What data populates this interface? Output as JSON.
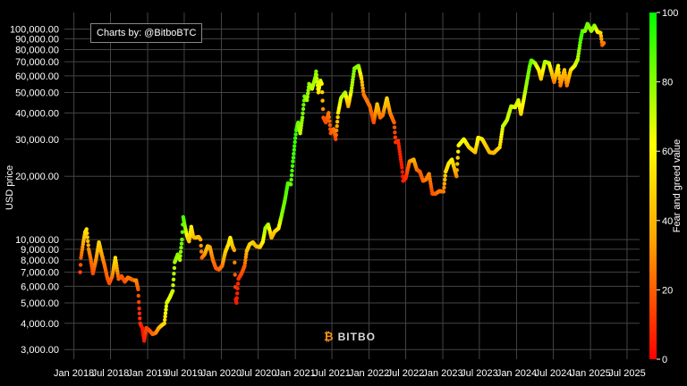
{
  "credit": "Charts by: @BitboBTC",
  "watermark": "BITBO",
  "chart_data": {
    "type": "scatter",
    "title": "",
    "ylabel": "USD price",
    "colorbar_label": "Fear and greed value",
    "y_scale": "log",
    "ylim": [
      2700,
      120000
    ],
    "x_range": [
      "2017-11-15",
      "2025-09-01"
    ],
    "x_ticks": [
      "Jan 2018",
      "Jul 2018",
      "Jan 2019",
      "Jul 2019",
      "Jan 2020",
      "Jul 2020",
      "Jan 2021",
      "Jul 2021",
      "Jan 2022",
      "Jul 2022",
      "Jan 2023",
      "Jul 2023",
      "Jan 2024",
      "Jul 2024",
      "Jan 2025",
      "Jul 2025"
    ],
    "y_ticks": [
      3000,
      4000,
      5000,
      6000,
      7000,
      8000,
      9000,
      10000,
      20000,
      30000,
      40000,
      50000,
      60000,
      70000,
      80000,
      90000,
      100000
    ],
    "y_tick_labels": [
      "3,000.00",
      "4,000.00",
      "5,000.00",
      "6,000.00",
      "7,000.00",
      "8,000.00",
      "9,000.00",
      "10,000.00",
      "20,000.00",
      "30,000.00",
      "40,000.00",
      "50,000.00",
      "60,000.00",
      "70,000.00",
      "80,000.00",
      "90,000.00",
      "100,000.00"
    ],
    "colorbar_range": [
      0,
      100
    ],
    "colorbar_ticks": [
      0,
      20,
      40,
      60,
      80,
      100
    ],
    "colorscale": [
      "#ff0000",
      "#ffa500",
      "#ffff00",
      "#00ff00"
    ],
    "grid": true,
    "series": [
      {
        "points": [
          [
            "2018-02-01",
            7000,
            15
          ],
          [
            "2018-02-05",
            8200,
            20
          ],
          [
            "2018-02-15",
            9500,
            35
          ],
          [
            "2018-02-25",
            10800,
            50
          ],
          [
            "2018-03-05",
            11200,
            55
          ],
          [
            "2018-03-15",
            9000,
            30
          ],
          [
            "2018-03-25",
            8100,
            25
          ],
          [
            "2018-04-05",
            6900,
            15
          ],
          [
            "2018-04-20",
            8000,
            30
          ],
          [
            "2018-05-05",
            9700,
            50
          ],
          [
            "2018-05-20",
            8400,
            35
          ],
          [
            "2018-06-01",
            7600,
            25
          ],
          [
            "2018-06-15",
            6600,
            20
          ],
          [
            "2018-06-25",
            6200,
            15
          ],
          [
            "2018-07-10",
            6700,
            25
          ],
          [
            "2018-07-25",
            8200,
            55
          ],
          [
            "2018-08-10",
            6500,
            20
          ],
          [
            "2018-08-25",
            6700,
            20
          ],
          [
            "2018-09-10",
            6300,
            15
          ],
          [
            "2018-09-25",
            6600,
            25
          ],
          [
            "2018-10-10",
            6500,
            25
          ],
          [
            "2018-10-25",
            6400,
            20
          ],
          [
            "2018-11-05",
            6400,
            30
          ],
          [
            "2018-11-15",
            5800,
            20
          ],
          [
            "2018-11-20",
            4700,
            10
          ],
          [
            "2018-11-25",
            4000,
            10
          ],
          [
            "2018-12-05",
            3800,
            5
          ],
          [
            "2018-12-15",
            3300,
            5
          ],
          [
            "2018-12-25",
            3800,
            15
          ],
          [
            "2019-01-10",
            3700,
            15
          ],
          [
            "2019-01-25",
            3550,
            20
          ],
          [
            "2019-02-10",
            3600,
            25
          ],
          [
            "2019-02-25",
            3800,
            35
          ],
          [
            "2019-03-10",
            3900,
            45
          ],
          [
            "2019-03-25",
            4000,
            50
          ],
          [
            "2019-04-05",
            5000,
            70
          ],
          [
            "2019-04-20",
            5300,
            65
          ],
          [
            "2019-05-05",
            5700,
            70
          ],
          [
            "2019-05-15",
            7800,
            75
          ],
          [
            "2019-05-30",
            8500,
            80
          ],
          [
            "2019-06-10",
            8000,
            75
          ],
          [
            "2019-06-20",
            10000,
            85
          ],
          [
            "2019-06-26",
            12800,
            90
          ],
          [
            "2019-07-05",
            11500,
            80
          ],
          [
            "2019-07-15",
            10400,
            60
          ],
          [
            "2019-07-25",
            9800,
            45
          ],
          [
            "2019-08-05",
            11500,
            60
          ],
          [
            "2019-08-15",
            10300,
            45
          ],
          [
            "2019-08-25",
            10200,
            40
          ],
          [
            "2019-09-10",
            10300,
            45
          ],
          [
            "2019-09-20",
            10000,
            40
          ],
          [
            "2019-09-26",
            8200,
            20
          ],
          [
            "2019-10-10",
            8500,
            30
          ],
          [
            "2019-10-25",
            9300,
            45
          ],
          [
            "2019-11-05",
            9200,
            40
          ],
          [
            "2019-11-20",
            8000,
            25
          ],
          [
            "2019-12-05",
            7300,
            20
          ],
          [
            "2019-12-20",
            7200,
            20
          ],
          [
            "2020-01-05",
            7500,
            25
          ],
          [
            "2020-01-20",
            8700,
            45
          ],
          [
            "2020-02-05",
            9500,
            55
          ],
          [
            "2020-02-14",
            10200,
            60
          ],
          [
            "2020-02-25",
            9300,
            45
          ],
          [
            "2020-03-05",
            8900,
            35
          ],
          [
            "2020-03-12",
            5200,
            5
          ],
          [
            "2020-03-16",
            5000,
            5
          ],
          [
            "2020-03-25",
            6500,
            10
          ],
          [
            "2020-04-10",
            6900,
            15
          ],
          [
            "2020-04-25",
            7500,
            20
          ],
          [
            "2020-05-05",
            8800,
            40
          ],
          [
            "2020-05-20",
            9500,
            50
          ],
          [
            "2020-06-05",
            9700,
            50
          ],
          [
            "2020-06-20",
            9300,
            40
          ],
          [
            "2020-07-10",
            9200,
            45
          ],
          [
            "2020-07-25",
            9800,
            60
          ],
          [
            "2020-08-05",
            11300,
            75
          ],
          [
            "2020-08-20",
            11800,
            75
          ],
          [
            "2020-09-05",
            10200,
            40
          ],
          [
            "2020-09-20",
            10900,
            45
          ],
          [
            "2020-10-10",
            11300,
            55
          ],
          [
            "2020-10-25",
            13000,
            80
          ],
          [
            "2020-11-10",
            15300,
            85
          ],
          [
            "2020-11-25",
            18500,
            90
          ],
          [
            "2020-12-10",
            18300,
            85
          ],
          [
            "2020-12-20",
            23500,
            90
          ],
          [
            "2021-01-05",
            33000,
            92
          ],
          [
            "2021-01-15",
            36000,
            85
          ],
          [
            "2021-01-25",
            32000,
            70
          ],
          [
            "2021-02-05",
            38000,
            80
          ],
          [
            "2021-02-15",
            48000,
            88
          ],
          [
            "2021-02-28",
            46000,
            75
          ],
          [
            "2021-03-10",
            55000,
            80
          ],
          [
            "2021-03-25",
            52000,
            70
          ],
          [
            "2021-04-10",
            59000,
            78
          ],
          [
            "2021-04-14",
            63000,
            80
          ],
          [
            "2021-04-25",
            50000,
            55
          ],
          [
            "2021-05-05",
            57000,
            72
          ],
          [
            "2021-05-12",
            55000,
            60
          ],
          [
            "2021-05-20",
            38000,
            20
          ],
          [
            "2021-06-01",
            36000,
            15
          ],
          [
            "2021-06-15",
            40000,
            25
          ],
          [
            "2021-06-25",
            32000,
            15
          ],
          [
            "2021-07-10",
            33500,
            25
          ],
          [
            "2021-07-20",
            30000,
            15
          ],
          [
            "2021-08-01",
            40000,
            55
          ],
          [
            "2021-08-15",
            47000,
            70
          ],
          [
            "2021-09-05",
            50000,
            75
          ],
          [
            "2021-09-20",
            43000,
            35
          ],
          [
            "2021-10-05",
            51000,
            70
          ],
          [
            "2021-10-20",
            65000,
            82
          ],
          [
            "2021-11-10",
            67000,
            80
          ],
          [
            "2021-11-25",
            58000,
            50
          ],
          [
            "2021-12-05",
            49000,
            25
          ],
          [
            "2021-12-20",
            46000,
            25
          ],
          [
            "2022-01-05",
            43000,
            25
          ],
          [
            "2022-01-24",
            36000,
            15
          ],
          [
            "2022-02-10",
            44000,
            45
          ],
          [
            "2022-02-25",
            38000,
            25
          ],
          [
            "2022-03-10",
            39000,
            25
          ],
          [
            "2022-03-30",
            47000,
            50
          ],
          [
            "2022-04-15",
            40000,
            30
          ],
          [
            "2022-05-05",
            36000,
            20
          ],
          [
            "2022-05-12",
            29000,
            10
          ],
          [
            "2022-05-25",
            29500,
            10
          ],
          [
            "2022-06-13",
            22000,
            5
          ],
          [
            "2022-06-18",
            19000,
            5
          ],
          [
            "2022-07-01",
            19500,
            8
          ],
          [
            "2022-07-20",
            23500,
            25
          ],
          [
            "2022-08-10",
            24000,
            40
          ],
          [
            "2022-08-25",
            21500,
            25
          ],
          [
            "2022-09-10",
            21000,
            20
          ],
          [
            "2022-09-25",
            19000,
            20
          ],
          [
            "2022-10-10",
            19300,
            25
          ],
          [
            "2022-10-25",
            20500,
            30
          ],
          [
            "2022-11-10",
            16500,
            15
          ],
          [
            "2022-11-25",
            16500,
            20
          ],
          [
            "2022-12-15",
            17000,
            25
          ],
          [
            "2023-01-05",
            16900,
            25
          ],
          [
            "2023-01-15",
            21000,
            50
          ],
          [
            "2023-01-30",
            23000,
            55
          ],
          [
            "2023-02-15",
            24000,
            58
          ],
          [
            "2023-03-10",
            20000,
            30
          ],
          [
            "2023-03-20",
            28000,
            62
          ],
          [
            "2023-04-15",
            30000,
            65
          ],
          [
            "2023-05-10",
            27500,
            52
          ],
          [
            "2023-06-10",
            26000,
            45
          ],
          [
            "2023-06-25",
            30500,
            62
          ],
          [
            "2023-07-15",
            30000,
            55
          ],
          [
            "2023-08-20",
            26000,
            40
          ],
          [
            "2023-09-10",
            25800,
            40
          ],
          [
            "2023-10-10",
            27500,
            50
          ],
          [
            "2023-10-25",
            34500,
            70
          ],
          [
            "2023-11-15",
            37000,
            70
          ],
          [
            "2023-12-05",
            43000,
            72
          ],
          [
            "2023-12-25",
            42500,
            65
          ],
          [
            "2024-01-10",
            46000,
            70
          ],
          [
            "2024-01-23",
            39500,
            50
          ],
          [
            "2024-02-15",
            52000,
            75
          ],
          [
            "2024-03-05",
            66000,
            85
          ],
          [
            "2024-03-14",
            71000,
            88
          ],
          [
            "2024-04-01",
            69000,
            75
          ],
          [
            "2024-04-20",
            64000,
            60
          ],
          [
            "2024-05-01",
            58000,
            45
          ],
          [
            "2024-05-20",
            70000,
            75
          ],
          [
            "2024-06-10",
            69000,
            70
          ],
          [
            "2024-06-25",
            61000,
            45
          ],
          [
            "2024-07-05",
            56000,
            25
          ],
          [
            "2024-07-25",
            67000,
            62
          ],
          [
            "2024-08-05",
            54000,
            25
          ],
          [
            "2024-08-25",
            64000,
            45
          ],
          [
            "2024-09-06",
            54000,
            25
          ],
          [
            "2024-09-25",
            64000,
            50
          ],
          [
            "2024-10-15",
            67000,
            65
          ],
          [
            "2024-10-30",
            72000,
            72
          ],
          [
            "2024-11-13",
            89000,
            88
          ],
          [
            "2024-11-22",
            98000,
            92
          ],
          [
            "2024-12-05",
            98000,
            80
          ],
          [
            "2024-12-17",
            106000,
            85
          ],
          [
            "2025-01-05",
            98000,
            75
          ],
          [
            "2025-01-20",
            104000,
            80
          ],
          [
            "2025-02-05",
            97000,
            62
          ],
          [
            "2025-02-20",
            96000,
            52
          ],
          [
            "2025-02-28",
            84000,
            20
          ],
          [
            "2025-03-08",
            86000,
            25
          ]
        ]
      }
    ]
  }
}
